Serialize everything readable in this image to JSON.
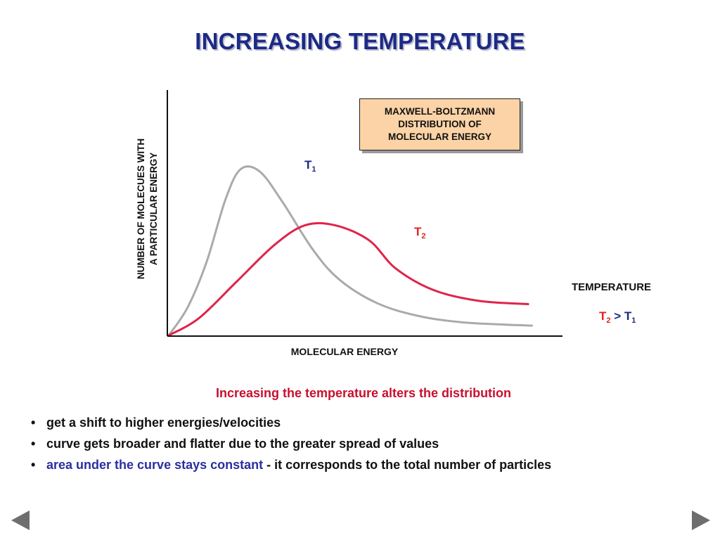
{
  "slide": {
    "title": "INCREASING TEMPERATURE",
    "caption": "Increasing the temperature alters the distribution",
    "bullets": [
      {
        "text": "get a shift to higher energies/velocities"
      },
      {
        "text": "curve gets broader and flatter due to the greater spread of values"
      },
      {
        "highlight": "area under the curve stays constant",
        "text": " - it corresponds to the total number of particles"
      }
    ],
    "bullet_marker": "•"
  },
  "chart_data": {
    "type": "line",
    "xlabel": "MOLECULAR ENERGY",
    "ylabel_lines": [
      "NUMBER OF MOLECUES WITH",
      "A PARTICULAR ENERGY"
    ],
    "legend_box_lines": [
      "MAXWELL-BOLTZMANN",
      "DISTRIBUTION OF",
      "MOLECULAR ENERGY"
    ],
    "grid": false,
    "x_range": [
      0,
      10
    ],
    "y_range": [
      0,
      10
    ],
    "series": [
      {
        "name": "T1",
        "label_main": "T",
        "label_sub": "1",
        "color": "#aaaaaa",
        "points": [
          [
            0,
            0
          ],
          [
            0.5,
            1.3
          ],
          [
            1,
            3.4
          ],
          [
            1.5,
            6.3
          ],
          [
            1.9,
            7.7
          ],
          [
            2.4,
            7.6
          ],
          [
            3,
            6.2
          ],
          [
            3.8,
            4
          ],
          [
            4.5,
            2.6
          ],
          [
            5.5,
            1.5
          ],
          [
            6.6,
            0.9
          ],
          [
            7.8,
            0.6
          ],
          [
            9.6,
            0.45
          ]
        ]
      },
      {
        "name": "T2",
        "label_main": "T",
        "label_sub": "2",
        "color": "#e0234a",
        "points": [
          [
            0,
            0
          ],
          [
            0.8,
            0.8
          ],
          [
            1.8,
            2.5
          ],
          [
            2.8,
            4.2
          ],
          [
            3.6,
            5.1
          ],
          [
            4.4,
            5.1
          ],
          [
            5.3,
            4.4
          ],
          [
            6,
            3.1
          ],
          [
            7,
            2.1
          ],
          [
            8.2,
            1.6
          ],
          [
            9.5,
            1.45
          ]
        ]
      }
    ]
  },
  "temperature_note": {
    "heading": "TEMPERATURE",
    "lhs_main": "T",
    "lhs_sub": "2",
    "operator": " > ",
    "rhs_main": "T",
    "rhs_sub": "1",
    "lhs_color": "#e0231f",
    "rhs_color": "#1c2a86"
  },
  "navigation": {
    "prev_icon": "triangle-left-icon",
    "next_icon": "triangle-right-icon"
  }
}
